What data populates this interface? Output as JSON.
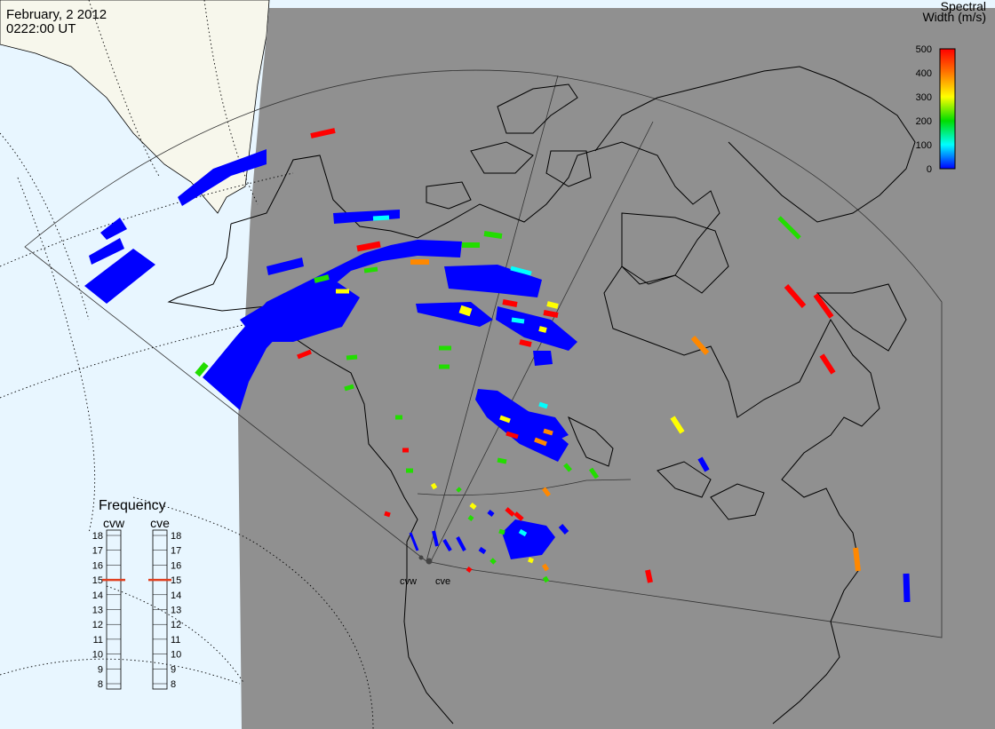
{
  "header": {
    "date": "February, 2 2012",
    "time": "0222:00 UT"
  },
  "colorbar": {
    "title_line1": "Spectral",
    "title_line2": "Width (m/s)",
    "ticks": [
      "500",
      "400",
      "300",
      "200",
      "100",
      "0"
    ],
    "colors": [
      "#ff0000",
      "#ff7700",
      "#ffff00",
      "#00dd00",
      "#00ffff",
      "#0000ff"
    ]
  },
  "frequency_panel": {
    "title": "Frequency",
    "radars": [
      "cvw",
      "cve"
    ],
    "scale": [
      "18",
      "17",
      "16",
      "15",
      "14",
      "13",
      "12",
      "11",
      "10",
      "9",
      "8"
    ],
    "current_mhz": [
      15,
      15
    ],
    "marker_color": "#e04020"
  },
  "radar_sites": {
    "labels": [
      "cvw",
      "cve"
    ]
  },
  "colors": {
    "night_shade": "#909090",
    "ocean_day": "#e8f6ff",
    "land_day": "#f7f7ec",
    "echo_low": "#0000ff"
  }
}
